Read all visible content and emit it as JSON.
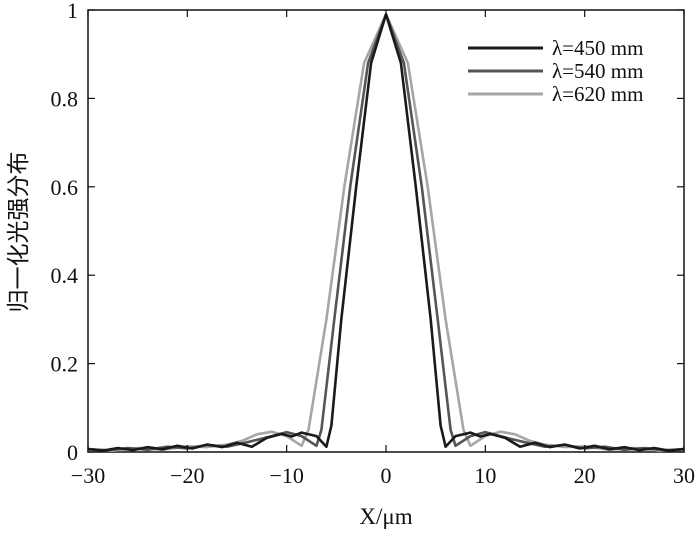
{
  "chart_data": {
    "type": "line",
    "title": "",
    "xlabel": "X/μm",
    "ylabel": "归一化光强分布",
    "xlim": [
      -30,
      30
    ],
    "ylim": [
      0,
      1
    ],
    "xticks": [
      -30,
      -20,
      -10,
      0,
      10,
      20,
      30
    ],
    "xtick_labels": [
      "−30",
      "−20",
      "−10",
      "0",
      "10",
      "20",
      "30"
    ],
    "yticks": [
      0,
      0.2,
      0.4,
      0.6,
      0.8,
      1
    ],
    "ytick_labels": [
      "0",
      "0.2",
      "0.4",
      "0.6",
      "0.8",
      "1"
    ],
    "grid": false,
    "legend_position": "top-right",
    "series": [
      {
        "name": "λ=450 mm",
        "color": "#1a1a1a",
        "points": [
          [
            -30,
            0.007
          ],
          [
            -28.5,
            0.003
          ],
          [
            -27,
            0.009
          ],
          [
            -25.5,
            0.004
          ],
          [
            -24,
            0.011
          ],
          [
            -22.5,
            0.006
          ],
          [
            -21,
            0.014
          ],
          [
            -19.5,
            0.008
          ],
          [
            -18,
            0.017
          ],
          [
            -16.5,
            0.011
          ],
          [
            -15,
            0.021
          ],
          [
            -13.5,
            0.012
          ],
          [
            -12,
            0.032
          ],
          [
            -10.5,
            0.041
          ],
          [
            -9.5,
            0.035
          ],
          [
            -8.5,
            0.044
          ],
          [
            -7,
            0.036
          ],
          [
            -6,
            0.012
          ],
          [
            -5.5,
            0.06
          ],
          [
            -4.5,
            0.3
          ],
          [
            -3,
            0.6
          ],
          [
            -1.5,
            0.88
          ],
          [
            0,
            0.99
          ],
          [
            1.5,
            0.88
          ],
          [
            3,
            0.6
          ],
          [
            4.5,
            0.3
          ],
          [
            5.5,
            0.06
          ],
          [
            6,
            0.012
          ],
          [
            7,
            0.036
          ],
          [
            8.5,
            0.044
          ],
          [
            9.5,
            0.035
          ],
          [
            10.5,
            0.041
          ],
          [
            12,
            0.032
          ],
          [
            13.5,
            0.012
          ],
          [
            15,
            0.021
          ],
          [
            16.5,
            0.011
          ],
          [
            18,
            0.017
          ],
          [
            19.5,
            0.008
          ],
          [
            21,
            0.014
          ],
          [
            22.5,
            0.006
          ],
          [
            24,
            0.011
          ],
          [
            25.5,
            0.004
          ],
          [
            27,
            0.009
          ],
          [
            28.5,
            0.003
          ],
          [
            30,
            0.007
          ]
        ]
      },
      {
        "name": "λ=540 mm",
        "color": "#555555",
        "points": [
          [
            -30,
            0.006
          ],
          [
            -28,
            0.004
          ],
          [
            -26,
            0.009
          ],
          [
            -24,
            0.005
          ],
          [
            -22,
            0.012
          ],
          [
            -20,
            0.008
          ],
          [
            -18,
            0.016
          ],
          [
            -16,
            0.012
          ],
          [
            -14,
            0.022
          ],
          [
            -12.5,
            0.03
          ],
          [
            -11.5,
            0.036
          ],
          [
            -10,
            0.045
          ],
          [
            -8.5,
            0.036
          ],
          [
            -7,
            0.014
          ],
          [
            -6.5,
            0.05
          ],
          [
            -5.2,
            0.3
          ],
          [
            -3.6,
            0.6
          ],
          [
            -1.8,
            0.88
          ],
          [
            0,
            0.99
          ],
          [
            1.8,
            0.88
          ],
          [
            3.6,
            0.6
          ],
          [
            5.2,
            0.3
          ],
          [
            6.5,
            0.05
          ],
          [
            7,
            0.014
          ],
          [
            8.5,
            0.036
          ],
          [
            10,
            0.045
          ],
          [
            11.5,
            0.036
          ],
          [
            12.5,
            0.03
          ],
          [
            14,
            0.022
          ],
          [
            16,
            0.012
          ],
          [
            18,
            0.016
          ],
          [
            20,
            0.008
          ],
          [
            22,
            0.012
          ],
          [
            24,
            0.005
          ],
          [
            26,
            0.009
          ],
          [
            28,
            0.004
          ],
          [
            30,
            0.006
          ]
        ]
      },
      {
        "name": "λ=620 mm",
        "color": "#a6a6a6",
        "points": [
          [
            -30,
            0.006
          ],
          [
            -27.5,
            0.003
          ],
          [
            -25,
            0.009
          ],
          [
            -22.5,
            0.005
          ],
          [
            -20,
            0.013
          ],
          [
            -18,
            0.011
          ],
          [
            -16,
            0.017
          ],
          [
            -14.5,
            0.025
          ],
          [
            -13,
            0.04
          ],
          [
            -11.5,
            0.046
          ],
          [
            -10,
            0.036
          ],
          [
            -8.5,
            0.014
          ],
          [
            -7.8,
            0.05
          ],
          [
            -6,
            0.3
          ],
          [
            -4.2,
            0.6
          ],
          [
            -2.2,
            0.88
          ],
          [
            0,
            0.99
          ],
          [
            2.2,
            0.88
          ],
          [
            4.2,
            0.6
          ],
          [
            6,
            0.3
          ],
          [
            7.8,
            0.05
          ],
          [
            8.5,
            0.014
          ],
          [
            10,
            0.036
          ],
          [
            11.5,
            0.046
          ],
          [
            13,
            0.04
          ],
          [
            14.5,
            0.025
          ],
          [
            16,
            0.017
          ],
          [
            18,
            0.011
          ],
          [
            20,
            0.013
          ],
          [
            22.5,
            0.005
          ],
          [
            25,
            0.009
          ],
          [
            27.5,
            0.003
          ],
          [
            30,
            0.006
          ]
        ]
      }
    ]
  }
}
